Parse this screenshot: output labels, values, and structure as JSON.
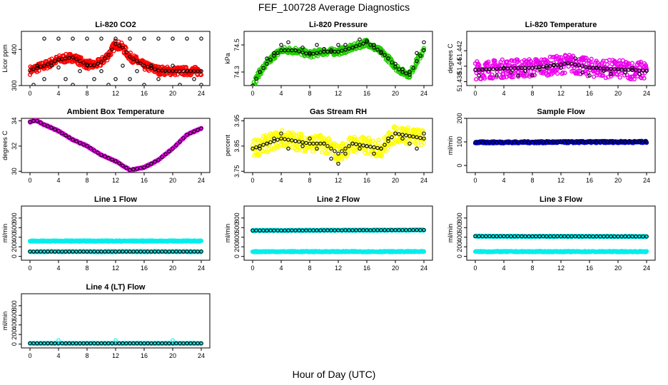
{
  "figure": {
    "title": "FEF_100728  Average Diagnostics",
    "xlabel": "Hour of Day (UTC)"
  },
  "chart_data": [
    {
      "type": "scatter",
      "title": "Li-820 CO2",
      "ylabel": "Licor ppm",
      "xlim": [
        0,
        24
      ],
      "ylim": [
        300,
        450
      ],
      "yticks": [
        300,
        400
      ],
      "yticklabels": [
        "300",
        "400"
      ],
      "xticks": [
        0,
        4,
        8,
        12,
        16,
        20,
        24
      ],
      "fill_color": "#ff0000",
      "curve": [
        [
          0,
          342
        ],
        [
          2,
          355
        ],
        [
          4,
          372
        ],
        [
          6,
          378
        ],
        [
          8,
          358
        ],
        [
          9,
          356
        ],
        [
          10,
          365
        ],
        [
          11,
          385
        ],
        [
          12,
          415
        ],
        [
          13,
          405
        ],
        [
          14,
          380
        ],
        [
          16,
          355
        ],
        [
          18,
          342
        ],
        [
          20,
          340
        ],
        [
          22,
          340
        ],
        [
          24,
          340
        ]
      ],
      "spread": 12,
      "extra_points": [
        [
          0.5,
          302
        ],
        [
          1,
          355
        ],
        [
          2,
          430
        ],
        [
          2,
          318
        ],
        [
          3,
          355
        ],
        [
          4,
          430
        ],
        [
          4,
          350
        ],
        [
          5,
          318
        ],
        [
          6,
          430
        ],
        [
          6,
          302
        ],
        [
          7,
          340
        ],
        [
          8,
          430
        ],
        [
          8,
          355
        ],
        [
          9,
          318
        ],
        [
          10,
          430
        ],
        [
          10,
          340
        ],
        [
          11,
          302
        ],
        [
          12,
          430
        ],
        [
          12,
          318
        ],
        [
          13,
          355
        ],
        [
          14,
          430
        ],
        [
          14,
          318
        ],
        [
          15,
          340
        ],
        [
          16,
          430
        ],
        [
          16,
          302
        ],
        [
          17,
          355
        ],
        [
          18,
          430
        ],
        [
          18,
          318
        ],
        [
          19,
          340
        ],
        [
          20,
          430
        ],
        [
          20,
          355
        ],
        [
          21,
          302
        ],
        [
          22,
          430
        ],
        [
          22,
          340
        ],
        [
          23,
          318
        ],
        [
          24,
          430
        ],
        [
          24,
          302
        ]
      ]
    },
    {
      "type": "scatter",
      "title": "Li-820 Pressure",
      "ylabel": "kPa",
      "xlim": [
        0,
        24
      ],
      "ylim": [
        74.2,
        74.6
      ],
      "yticks": [
        74.3,
        74.5
      ],
      "yticklabels": [
        "74.3",
        "74.5"
      ],
      "xticks": [
        0,
        4,
        8,
        12,
        16,
        20,
        24
      ],
      "fill_color": "#22cc00",
      "curve": [
        [
          0,
          74.2
        ],
        [
          1,
          74.3
        ],
        [
          2,
          74.36
        ],
        [
          3,
          74.42
        ],
        [
          4,
          74.46
        ],
        [
          6,
          74.46
        ],
        [
          8,
          74.43
        ],
        [
          10,
          74.45
        ],
        [
          12,
          74.45
        ],
        [
          14,
          74.48
        ],
        [
          15,
          74.5
        ],
        [
          16,
          74.52
        ],
        [
          17,
          74.48
        ],
        [
          18,
          74.45
        ],
        [
          19,
          74.4
        ],
        [
          20,
          74.34
        ],
        [
          21,
          74.3
        ],
        [
          22,
          74.28
        ],
        [
          23,
          74.38
        ],
        [
          24,
          74.46
        ]
      ],
      "spread": 0.025,
      "extra_points": [
        [
          1,
          74.3
        ],
        [
          2,
          74.4
        ],
        [
          3,
          74.44
        ],
        [
          4,
          74.5
        ],
        [
          5,
          74.52
        ],
        [
          6,
          74.46
        ],
        [
          7,
          74.48
        ],
        [
          8,
          74.44
        ],
        [
          9,
          74.5
        ],
        [
          10,
          74.47
        ],
        [
          11,
          74.46
        ],
        [
          12,
          74.5
        ],
        [
          13,
          74.5
        ],
        [
          14,
          74.48
        ],
        [
          15,
          74.54
        ],
        [
          16,
          74.53
        ],
        [
          17,
          74.5
        ],
        [
          18,
          74.44
        ],
        [
          19,
          74.4
        ],
        [
          20,
          74.36
        ],
        [
          21,
          74.32
        ],
        [
          22,
          74.3
        ],
        [
          23,
          74.44
        ],
        [
          24,
          74.52
        ]
      ]
    },
    {
      "type": "scatter",
      "title": "Li-820 Temperature",
      "ylabel": "degrees C",
      "xlim": [
        0,
        24
      ],
      "ylim": [
        51.4375,
        51.4445
      ],
      "yticks": [
        51.438,
        51.44,
        51.442
      ],
      "yticklabels": [
        "51.438",
        "51.44",
        "51.442"
      ],
      "xticks": [
        0,
        4,
        8,
        12,
        16,
        20,
        24
      ],
      "fill_color": "#ee00ee",
      "curve": [
        [
          0,
          51.4395
        ],
        [
          4,
          51.4397
        ],
        [
          8,
          51.4398
        ],
        [
          12,
          51.4402
        ],
        [
          13,
          51.4404
        ],
        [
          16,
          51.4398
        ],
        [
          20,
          51.4396
        ],
        [
          24,
          51.4394
        ]
      ],
      "spread": 0.0012,
      "extra_points": [
        [
          0.5,
          51.4388
        ],
        [
          2,
          51.4396
        ],
        [
          3,
          51.4388
        ],
        [
          4,
          51.4398
        ],
        [
          5,
          51.4392
        ],
        [
          6,
          51.4388
        ],
        [
          7,
          51.4394
        ],
        [
          8,
          51.4388
        ],
        [
          9,
          51.4396
        ],
        [
          10,
          51.4398
        ],
        [
          11,
          51.4402
        ],
        [
          12,
          51.4398
        ],
        [
          13,
          51.4404
        ],
        [
          14,
          51.441
        ],
        [
          15,
          51.4392
        ],
        [
          16,
          51.4388
        ],
        [
          17,
          51.4398
        ],
        [
          18,
          51.4394
        ],
        [
          19,
          51.439
        ],
        [
          20,
          51.4396
        ],
        [
          21,
          51.4392
        ],
        [
          22,
          51.4398
        ],
        [
          23,
          51.439
        ],
        [
          24,
          51.4394
        ]
      ]
    },
    {
      "type": "scatter",
      "title": "Ambient Box Temperature",
      "ylabel": "degrees C",
      "xlim": [
        0,
        24
      ],
      "ylim": [
        29.9,
        34.2
      ],
      "yticks": [
        30,
        32,
        34
      ],
      "yticklabels": [
        "30",
        "32",
        "34"
      ],
      "xticks": [
        0,
        4,
        8,
        12,
        16,
        20,
        24
      ],
      "fill_color": "#ee00ee",
      "curve": [
        [
          0,
          33.9
        ],
        [
          0.5,
          34.0
        ],
        [
          1,
          34.0
        ],
        [
          2,
          33.7
        ],
        [
          4,
          33.2
        ],
        [
          6,
          32.5
        ],
        [
          8,
          32.0
        ],
        [
          10,
          31.3
        ],
        [
          12,
          30.8
        ],
        [
          14,
          30.1
        ],
        [
          16,
          30.3
        ],
        [
          18,
          30.9
        ],
        [
          20,
          31.8
        ],
        [
          22,
          32.9
        ],
        [
          24,
          33.4
        ]
      ],
      "spread": 0.05,
      "extra_points": []
    },
    {
      "type": "scatter",
      "title": "Gas Stream RH",
      "ylabel": "percent",
      "xlim": [
        0,
        24
      ],
      "ylim": [
        3.745,
        3.96
      ],
      "yticks": [
        3.75,
        3.85,
        3.95
      ],
      "yticklabels": [
        "3.75",
        "3.85",
        "3.95"
      ],
      "xticks": [
        0,
        4,
        8,
        12,
        16,
        20,
        24
      ],
      "fill_color": "#ffff00",
      "curve": [
        [
          0,
          3.84
        ],
        [
          2,
          3.86
        ],
        [
          4,
          3.88
        ],
        [
          6,
          3.87
        ],
        [
          8,
          3.86
        ],
        [
          10,
          3.86
        ],
        [
          12,
          3.82
        ],
        [
          14,
          3.86
        ],
        [
          16,
          3.85
        ],
        [
          18,
          3.84
        ],
        [
          20,
          3.9
        ],
        [
          22,
          3.89
        ],
        [
          24,
          3.88
        ]
      ],
      "spread": 0.035,
      "extra_points": [
        [
          1,
          3.84
        ],
        [
          2,
          3.86
        ],
        [
          3,
          3.88
        ],
        [
          4,
          3.9
        ],
        [
          5,
          3.84
        ],
        [
          6,
          3.87
        ],
        [
          7,
          3.85
        ],
        [
          8,
          3.88
        ],
        [
          9,
          3.84
        ],
        [
          10,
          3.86
        ],
        [
          11,
          3.8
        ],
        [
          12,
          3.78
        ],
        [
          13,
          3.82
        ],
        [
          14,
          3.86
        ],
        [
          15,
          3.84
        ],
        [
          16,
          3.85
        ],
        [
          17,
          3.82
        ],
        [
          18,
          3.84
        ],
        [
          19,
          3.88
        ],
        [
          20,
          3.9
        ],
        [
          21,
          3.88
        ],
        [
          22,
          3.86
        ],
        [
          23,
          3.84
        ],
        [
          24,
          3.9
        ]
      ]
    },
    {
      "type": "scatter",
      "title": "Sample Flow",
      "ylabel": "ml/min",
      "xlim": [
        0,
        24
      ],
      "ylim": [
        -30,
        200
      ],
      "yticks": [
        0,
        100,
        200
      ],
      "yticklabels": [
        "0",
        "100",
        "200"
      ],
      "xticks": [
        0,
        4,
        8,
        12,
        16,
        20,
        24
      ],
      "fill_color": "#0000cc",
      "curve": [
        [
          0,
          98
        ],
        [
          24,
          100
        ]
      ],
      "spread": 4,
      "extra_points": []
    },
    {
      "type": "scatter",
      "title": "Line 1 Flow",
      "ylabel": "ml/min",
      "xlim": [
        0,
        24
      ],
      "ylim": [
        -80,
        1050
      ],
      "yticks": [
        0,
        200,
        400,
        600,
        800
      ],
      "yticklabels": [
        "0",
        "200",
        "400",
        "600",
        "800"
      ],
      "xticks": [
        0,
        4,
        8,
        12,
        16,
        20,
        24
      ],
      "fill_color": "#00eeee",
      "curve": [
        [
          0,
          320
        ],
        [
          24,
          320
        ]
      ],
      "spread": 10,
      "second_curve": [
        [
          0,
          100
        ],
        [
          24,
          100
        ]
      ],
      "extra_points": []
    },
    {
      "type": "scatter",
      "title": "Line 2 Flow",
      "ylabel": "ml/min",
      "xlim": [
        0,
        24
      ],
      "ylim": [
        -80,
        1050
      ],
      "yticks": [
        0,
        200,
        400,
        600,
        800
      ],
      "yticklabels": [
        "0",
        "200",
        "400",
        "600",
        "800"
      ],
      "xticks": [
        0,
        4,
        8,
        12,
        16,
        20,
        24
      ],
      "fill_color": "#00eeee",
      "curve": [
        [
          0,
          540
        ],
        [
          24,
          550
        ]
      ],
      "spread": 10,
      "second_curve": [
        [
          0,
          100
        ],
        [
          24,
          100
        ]
      ],
      "extra_points": []
    },
    {
      "type": "scatter",
      "title": "Line 3 Flow",
      "ylabel": "ml/min",
      "xlim": [
        0,
        24
      ],
      "ylim": [
        -80,
        1050
      ],
      "yticks": [
        0,
        200,
        400,
        600,
        800
      ],
      "yticklabels": [
        "0",
        "200",
        "400",
        "600",
        "800"
      ],
      "xticks": [
        0,
        4,
        8,
        12,
        16,
        20,
        24
      ],
      "fill_color": "#00eeee",
      "curve": [
        [
          0,
          420
        ],
        [
          24,
          415
        ]
      ],
      "spread": 10,
      "second_curve": [
        [
          0,
          100
        ],
        [
          24,
          100
        ]
      ],
      "extra_points": []
    },
    {
      "type": "scatter",
      "title": "Line 4 (LT) Flow",
      "ylabel": "ml/min",
      "xlim": [
        0,
        24
      ],
      "ylim": [
        -80,
        1050
      ],
      "yticks": [
        0,
        200,
        400,
        600,
        800
      ],
      "yticklabels": [
        "0",
        "200",
        "400",
        "600",
        "800"
      ],
      "xticks": [
        0,
        4,
        8,
        12,
        16,
        20,
        24
      ],
      "fill_color": "#00eeee",
      "curve": [
        [
          0,
          15
        ],
        [
          24,
          15
        ]
      ],
      "spread": 6,
      "extra_points": [
        [
          4,
          80
        ],
        [
          12,
          80
        ],
        [
          20,
          80
        ]
      ]
    }
  ]
}
